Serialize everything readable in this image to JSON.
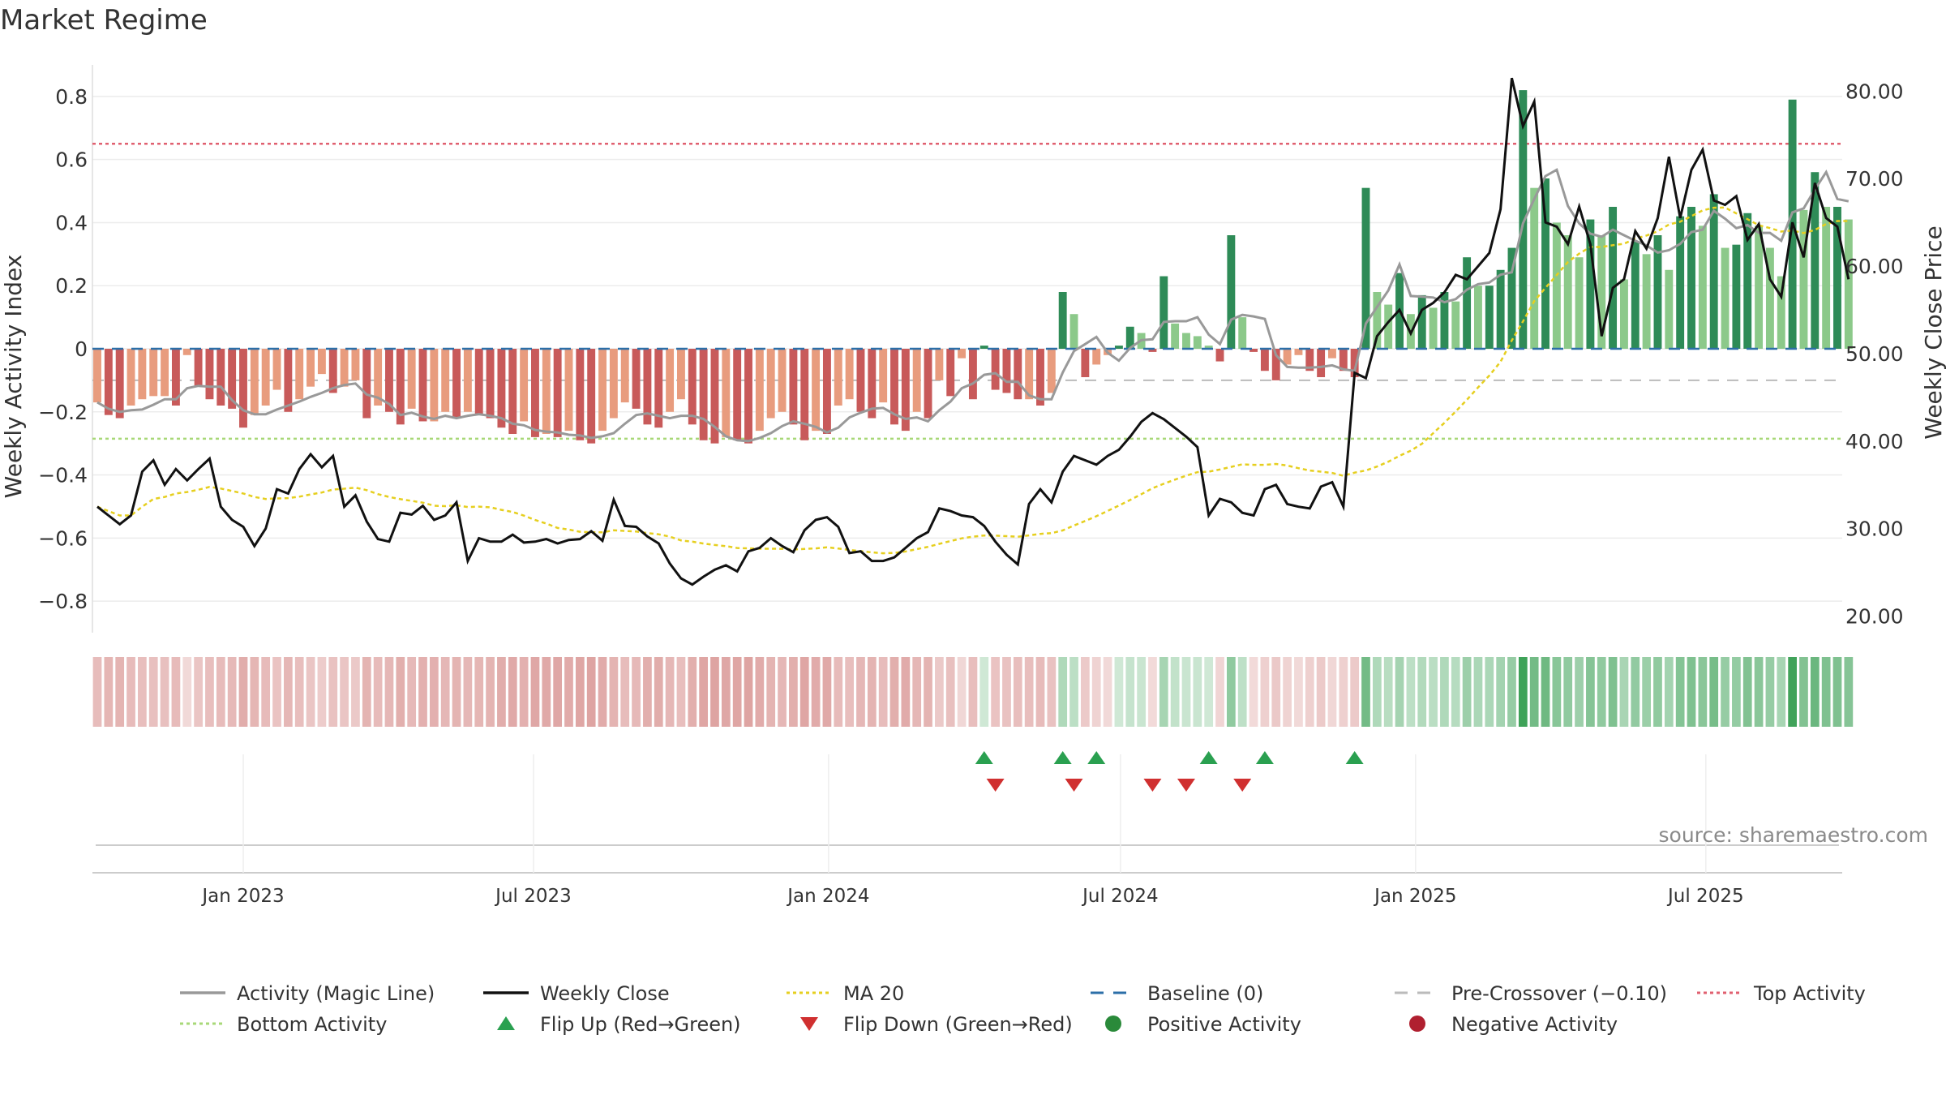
{
  "chart_data": {
    "type": "bar",
    "title": "Market Regime",
    "source": "source: sharemaestro.com",
    "left_axis": {
      "label": "Weekly Activity Index",
      "ylim": [
        -0.9,
        0.9
      ],
      "ticks": [
        0.8,
        0.6,
        0.4,
        0.2,
        0,
        -0.2,
        -0.4,
        -0.6,
        -0.8
      ],
      "tick_labels": [
        "0.8",
        "0.6",
        "0.4",
        "0.2",
        "0",
        "−0.2",
        "−0.4",
        "−0.6",
        "−0.8"
      ]
    },
    "right_axis": {
      "label": "Weekly Close Price",
      "ylim": [
        18.1,
        83.0
      ],
      "ticks": [
        80,
        70,
        60,
        50,
        40,
        30,
        20
      ],
      "tick_labels": [
        "80.00",
        "70.00",
        "60.00",
        "50.00",
        "40.00",
        "30.00",
        "20.00"
      ]
    },
    "x_axis": {
      "start": "2022-10-02",
      "end": "2025-09-21",
      "ticks": [
        {
          "date": "2023-01-01",
          "label": "Jan 2023"
        },
        {
          "date": "2023-07-01",
          "label": "Jul 2023"
        },
        {
          "date": "2024-01-01",
          "label": "Jan 2024"
        },
        {
          "date": "2024-07-01",
          "label": "Jul 2024"
        },
        {
          "date": "2025-01-01",
          "label": "Jan 2025"
        },
        {
          "date": "2025-07-01",
          "label": "Jul 2025"
        }
      ]
    },
    "reference_lines": {
      "baseline": 0,
      "pre_crossover": -0.1,
      "top_activity": 0.65,
      "bottom_activity": -0.285
    },
    "segments": [
      {
        "start": "2022-10-02",
        "weeks": 4,
        "activity": [
          -0.17,
          -0.21,
          -0.22,
          -0.18
        ],
        "close": [
          32.5,
          31.5,
          30.5,
          31.5
        ]
      },
      {
        "start": "2022-10-30",
        "weeks": 4,
        "activity": [
          -0.16,
          -0.15,
          -0.15,
          -0.18
        ],
        "close": [
          36.5,
          37.8,
          35.0,
          36.8
        ]
      },
      {
        "start": "2022-11-27",
        "weeks": 4,
        "activity": [
          -0.02,
          -0.12,
          -0.16,
          -0.18
        ],
        "close": [
          35.5,
          36.8,
          38.0,
          32.5
        ]
      },
      {
        "start": "2022-12-25",
        "weeks": 4,
        "activity": [
          -0.19,
          -0.25,
          -0.21,
          -0.18
        ],
        "close": [
          31.0,
          30.2,
          28.0,
          30.0
        ]
      },
      {
        "start": "2023-01-22",
        "weeks": 4,
        "activity": [
          -0.13,
          -0.2,
          -0.16,
          -0.12
        ],
        "close": [
          34.5,
          34.0,
          36.8,
          38.5
        ]
      },
      {
        "start": "2023-02-19",
        "weeks": 4,
        "activity": [
          -0.08,
          -0.14,
          -0.12,
          -0.1
        ],
        "close": [
          37.0,
          38.3,
          32.5,
          33.8
        ]
      },
      {
        "start": "2023-03-19",
        "weeks": 4,
        "activity": [
          -0.22,
          -0.18,
          -0.2,
          -0.24
        ],
        "close": [
          30.8,
          28.8,
          28.5,
          31.8
        ]
      },
      {
        "start": "2023-04-16",
        "weeks": 4,
        "activity": [
          -0.19,
          -0.23,
          -0.23,
          -0.2
        ],
        "close": [
          31.6,
          32.6,
          31.0,
          31.5
        ]
      },
      {
        "start": "2023-05-14",
        "weeks": 4,
        "activity": [
          -0.22,
          -0.2,
          -0.21,
          -0.22
        ],
        "close": [
          33.0,
          26.3,
          28.9,
          28.5
        ]
      },
      {
        "start": "2023-06-11",
        "weeks": 4,
        "activity": [
          -0.25,
          -0.27,
          -0.23,
          -0.28
        ],
        "close": [
          28.5,
          29.3,
          28.4,
          28.5
        ]
      },
      {
        "start": "2023-07-09",
        "weeks": 4,
        "activity": [
          -0.27,
          -0.28,
          -0.26,
          -0.29
        ],
        "close": [
          28.8,
          28.3,
          28.7,
          28.8
        ]
      },
      {
        "start": "2023-08-06",
        "weeks": 4,
        "activity": [
          -0.3,
          -0.26,
          -0.22,
          -0.17
        ],
        "close": [
          29.7,
          28.6,
          33.3,
          30.3
        ]
      },
      {
        "start": "2023-09-03",
        "weeks": 4,
        "activity": [
          -0.19,
          -0.24,
          -0.25,
          -0.2
        ],
        "close": [
          30.2,
          29.1,
          28.3,
          26.0
        ]
      },
      {
        "start": "2023-10-01",
        "weeks": 4,
        "activity": [
          -0.16,
          -0.24,
          -0.29,
          -0.3
        ],
        "close": [
          24.3,
          23.6,
          24.5,
          25.3
        ]
      },
      {
        "start": "2023-10-29",
        "weeks": 4,
        "activity": [
          -0.28,
          -0.29,
          -0.3,
          -0.26
        ],
        "close": [
          25.8,
          25.1,
          27.4,
          27.8
        ]
      },
      {
        "start": "2023-11-26",
        "weeks": 4,
        "activity": [
          -0.22,
          -0.2,
          -0.24,
          -0.29
        ],
        "close": [
          28.9,
          28.0,
          27.3,
          29.8
        ]
      },
      {
        "start": "2023-12-24",
        "weeks": 4,
        "activity": [
          -0.26,
          -0.27,
          -0.18,
          -0.16
        ],
        "close": [
          31.0,
          31.3,
          30.2,
          27.2
        ]
      },
      {
        "start": "2024-01-21",
        "weeks": 4,
        "activity": [
          -0.2,
          -0.22,
          -0.17,
          -0.24
        ],
        "close": [
          27.4,
          26.3,
          26.3,
          26.7
        ]
      },
      {
        "start": "2024-02-18",
        "weeks": 4,
        "activity": [
          -0.26,
          -0.2,
          -0.22,
          -0.1
        ],
        "close": [
          27.8,
          28.9,
          29.6,
          32.3
        ]
      },
      {
        "start": "2024-03-17",
        "weeks": 4,
        "activity": [
          -0.15,
          -0.03,
          -0.16,
          0.01
        ],
        "close": [
          32.0,
          31.5,
          31.3,
          30.3
        ]
      },
      {
        "start": "2024-04-14",
        "weeks": 4,
        "activity": [
          -0.13,
          -0.14,
          -0.16,
          -0.16
        ],
        "close": [
          28.5,
          27.0,
          25.9,
          32.8
        ]
      },
      {
        "start": "2024-05-12",
        "weeks": 4,
        "activity": [
          -0.18,
          -0.14,
          0.18,
          0.11
        ],
        "close": [
          34.5,
          33.0,
          36.5,
          38.3
        ]
      },
      {
        "start": "2024-06-09",
        "weeks": 4,
        "activity": [
          -0.09,
          -0.05,
          -0.02,
          0.01
        ],
        "close": [
          37.8,
          37.3,
          38.3,
          39.0
        ]
      },
      {
        "start": "2024-07-07",
        "weeks": 4,
        "activity": [
          0.07,
          0.05,
          -0.01,
          0.23
        ],
        "close": [
          40.5,
          42.2,
          43.2,
          42.5
        ]
      },
      {
        "start": "2024-08-04",
        "weeks": 4,
        "activity": [
          0.08,
          0.05,
          0.04,
          0.01
        ],
        "close": [
          41.5,
          40.5,
          39.3,
          31.5
        ]
      },
      {
        "start": "2024-09-01",
        "weeks": 4,
        "activity": [
          -0.04,
          0.36,
          0.1,
          -0.01
        ],
        "close": [
          33.4,
          33.0,
          31.8,
          31.5
        ]
      },
      {
        "start": "2024-09-29",
        "weeks": 4,
        "activity": [
          -0.07,
          -0.1,
          -0.05,
          -0.02
        ],
        "close": [
          34.5,
          35.0,
          32.8,
          32.5
        ]
      },
      {
        "start": "2024-10-27",
        "weeks": 4,
        "activity": [
          -0.07,
          -0.09,
          -0.03,
          -0.07
        ],
        "close": [
          32.3,
          34.8,
          35.3,
          32.5
        ]
      },
      {
        "start": "2024-11-24",
        "weeks": 4,
        "activity": [
          -0.09,
          0.51,
          0.18,
          0.14
        ],
        "close": [
          47.8,
          47.2,
          52.0,
          53.6
        ]
      },
      {
        "start": "2024-12-22",
        "weeks": 4,
        "activity": [
          0.24,
          0.11,
          0.17,
          0.13
        ],
        "close": [
          55.0,
          52.3,
          55.0,
          55.8
        ]
      },
      {
        "start": "2025-01-19",
        "weeks": 4,
        "activity": [
          0.18,
          0.15,
          0.29,
          0.2
        ],
        "close": [
          57.0,
          59.0,
          58.5,
          60.0
        ]
      },
      {
        "start": "2025-02-16",
        "weeks": 4,
        "activity": [
          0.2,
          0.25,
          0.32,
          0.82
        ],
        "close": [
          61.5,
          66.5,
          81.5,
          76.0
        ]
      },
      {
        "start": "2025-03-16",
        "weeks": 4,
        "activity": [
          0.51,
          0.54,
          0.4,
          0.36
        ],
        "close": [
          78.8,
          65.0,
          64.5,
          62.5
        ]
      },
      {
        "start": "2025-04-13",
        "weeks": 4,
        "activity": [
          0.29,
          0.41,
          0.36,
          0.45
        ],
        "close": [
          66.8,
          62.5,
          52.0,
          57.5
        ]
      },
      {
        "start": "2025-05-11",
        "weeks": 4,
        "activity": [
          0.22,
          0.34,
          0.3,
          0.36
        ],
        "close": [
          58.5,
          64.0,
          62.0,
          65.5
        ]
      },
      {
        "start": "2025-06-08",
        "weeks": 4,
        "activity": [
          0.25,
          0.42,
          0.45,
          0.39
        ],
        "close": [
          72.5,
          65.5,
          71.0,
          73.3
        ]
      },
      {
        "start": "2025-07-06",
        "weeks": 4,
        "activity": [
          0.49,
          0.32,
          0.33,
          0.43
        ],
        "close": [
          67.5,
          67.0,
          68.0,
          63.0
        ]
      },
      {
        "start": "2025-08-03",
        "weeks": 4,
        "activity": [
          0.39,
          0.32,
          0.23,
          0.79
        ],
        "close": [
          64.8,
          58.5,
          56.5,
          65.0
        ]
      },
      {
        "start": "2025-08-31",
        "weeks": 4,
        "activity": [
          0.44,
          0.56,
          0.45,
          0.45
        ],
        "close": [
          61.0,
          69.5,
          65.5,
          64.5
        ]
      },
      {
        "start": "2025-09-28",
        "weeks": 1,
        "activity": [
          0.41
        ],
        "close": [
          58.5
        ]
      }
    ],
    "flip_up": [
      "2024-04-07",
      "2024-05-26",
      "2024-06-16",
      "2024-08-25",
      "2024-09-29",
      "2024-11-24"
    ],
    "flip_down": [
      "2024-04-14",
      "2024-06-02",
      "2024-07-21",
      "2024-08-11",
      "2024-09-15"
    ],
    "legend": [
      {
        "label": "Activity (Magic Line)",
        "marker": "line",
        "color": "#999999"
      },
      {
        "label": "Weekly Close",
        "marker": "line",
        "color": "#111111"
      },
      {
        "label": "MA 20",
        "marker": "dotted",
        "color": "#e6cf1f"
      },
      {
        "label": "Baseline (0)",
        "marker": "dashed",
        "color": "#2c6fa8"
      },
      {
        "label": "Pre-Crossover (−0.10)",
        "marker": "dashed",
        "color": "#bbbbbb"
      },
      {
        "label": "Top Activity",
        "marker": "dotted",
        "color": "#e06070"
      },
      {
        "label": "Bottom Activity",
        "marker": "dotted",
        "color": "#a8d878"
      },
      {
        "label": "Flip Up (Red→Green)",
        "marker": "triangle-up",
        "color": "#2aa050"
      },
      {
        "label": "Flip Down (Green→Red)",
        "marker": "triangle-down",
        "color": "#d03030"
      },
      {
        "label": "Positive Activity",
        "marker": "circle",
        "color": "#2a8a3a"
      },
      {
        "label": "Negative Activity",
        "marker": "circle",
        "color": "#b02030"
      }
    ],
    "colors": {
      "pos_strong": "#2e8b57",
      "pos_weak": "#8cc98a",
      "neg_strong": "#c85a5a",
      "neg_weak": "#e89c7e",
      "close": "#111111",
      "magic": "#999999",
      "ma": "#e6cf1f",
      "baseline": "#2c6fa8",
      "pre": "#bbbbbb",
      "top": "#e06070",
      "bottom": "#a8d878",
      "up": "#2aa050",
      "down": "#d03030"
    }
  }
}
